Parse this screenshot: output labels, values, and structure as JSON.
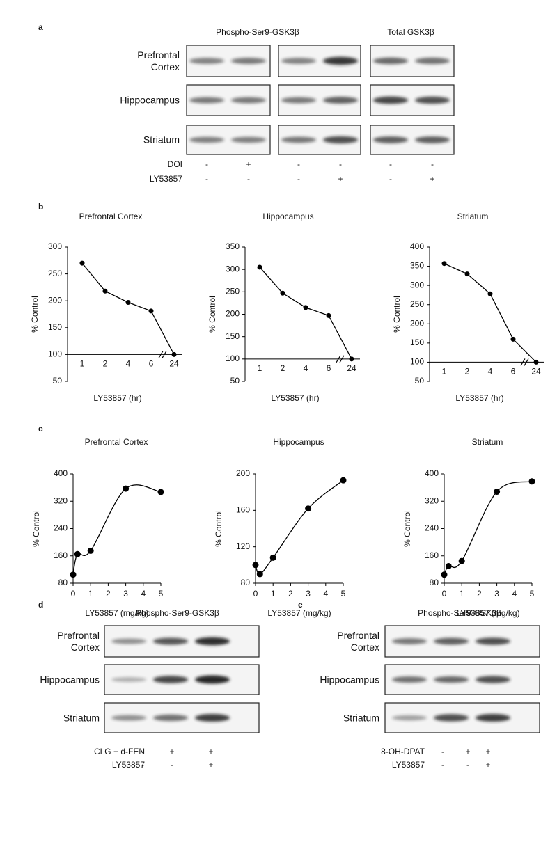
{
  "panel_labels": [
    "a",
    "b",
    "c",
    "d",
    "e"
  ],
  "blots": {
    "a": {
      "headers": [
        "Phospho-Ser9-GSK3β",
        "Total GSK3β"
      ],
      "rows": [
        "Prefrontal Cortex",
        "Hippocampus",
        "Striatum"
      ],
      "treatments": [
        {
          "name": "DOI",
          "signs": [
            "-",
            "+",
            "-",
            "-",
            "-",
            "-"
          ]
        },
        {
          "name": "LY53857",
          "signs": [
            "-",
            "-",
            "-",
            "+",
            "-",
            "+"
          ]
        }
      ]
    },
    "d": {
      "headers": [
        "Phospho-Ser9-GSK3β"
      ],
      "rows": [
        "Prefrontal Cortex",
        "Hippocampus",
        "Striatum"
      ],
      "treatments": [
        {
          "name": "CLG + d-FEN",
          "signs": [
            "-",
            "+",
            "+"
          ]
        },
        {
          "name": "LY53857",
          "signs": [
            "-",
            "-",
            "+"
          ]
        }
      ]
    },
    "e": {
      "headers": [
        "Phospho-Ser9-GSK3β"
      ],
      "rows": [
        "Prefrontal Cortex",
        "Hippocampus",
        "Striatum"
      ],
      "treatments": [
        {
          "name": "8-OH-DPAT",
          "signs": [
            "-",
            "+",
            "+"
          ]
        },
        {
          "name": "LY53857",
          "signs": [
            "-",
            "-",
            "+"
          ]
        }
      ]
    }
  },
  "chart_data": [
    {
      "type": "line",
      "title": "Prefrontal Cortex",
      "x_label": "LY53857 (hr)",
      "y_label": "% Control",
      "color": "#000000",
      "categories": [
        "1",
        "2",
        "4",
        "6",
        "24"
      ],
      "values": [
        270,
        218,
        197,
        181,
        100
      ],
      "ylim": [
        50,
        300
      ],
      "yticks": [
        50,
        100,
        150,
        200,
        250,
        300
      ],
      "x_axis_crosses": 100,
      "axis_break": true
    },
    {
      "type": "line",
      "title": "Hippocampus",
      "x_label": "LY53857 (hr)",
      "y_label": "% Control",
      "color": "#000000",
      "categories": [
        "1",
        "2",
        "4",
        "6",
        "24"
      ],
      "values": [
        305,
        247,
        215,
        197,
        100
      ],
      "ylim": [
        50,
        350
      ],
      "yticks": [
        50,
        100,
        150,
        200,
        250,
        300,
        350
      ],
      "x_axis_crosses": 100,
      "axis_break": true
    },
    {
      "type": "line",
      "title": "Striatum",
      "x_label": "LY53857 (hr)",
      "y_label": "% Control",
      "color": "#000000",
      "categories": [
        "1",
        "2",
        "4",
        "6",
        "24"
      ],
      "values": [
        357,
        330,
        278,
        160,
        100
      ],
      "ylim": [
        50,
        400
      ],
      "yticks": [
        50,
        100,
        150,
        200,
        250,
        300,
        350,
        400
      ],
      "x_axis_crosses": 100,
      "axis_break": true
    },
    {
      "type": "line",
      "smooth": true,
      "title": "Prefrontal Cortex",
      "x_label": "LY53857 (mg/kg)",
      "y_label": "% Control",
      "color": "#000000",
      "x": [
        0,
        0.25,
        1,
        3,
        5
      ],
      "values": [
        105,
        165,
        175,
        357,
        347
      ],
      "xlim": [
        0,
        5
      ],
      "xticks": [
        0,
        1,
        2,
        3,
        4,
        5
      ],
      "ylim": [
        80,
        400
      ],
      "yticks": [
        80,
        160,
        240,
        320,
        400
      ]
    },
    {
      "type": "line",
      "smooth": true,
      "title": "Hippocampus",
      "x_label": "LY53857 (mg/kg)",
      "y_label": "% Control",
      "color": "#000000",
      "x": [
        0,
        0.25,
        1,
        3,
        5
      ],
      "values": [
        100,
        90,
        108,
        162,
        193
      ],
      "xlim": [
        0,
        5
      ],
      "xticks": [
        0,
        1,
        2,
        3,
        4,
        5
      ],
      "ylim": [
        80,
        200
      ],
      "yticks": [
        80,
        120,
        160,
        200
      ]
    },
    {
      "type": "line",
      "smooth": true,
      "title": "Striatum",
      "x_label": "LY53857 (mg/kg)",
      "y_label": "% Control",
      "color": "#000000",
      "x": [
        0,
        0.25,
        1,
        3,
        5
      ],
      "values": [
        105,
        130,
        145,
        348,
        378
      ],
      "xlim": [
        0,
        5
      ],
      "xticks": [
        0,
        1,
        2,
        3,
        4,
        5
      ],
      "ylim": [
        80,
        400
      ],
      "yticks": [
        80,
        160,
        240,
        320,
        400
      ]
    }
  ]
}
